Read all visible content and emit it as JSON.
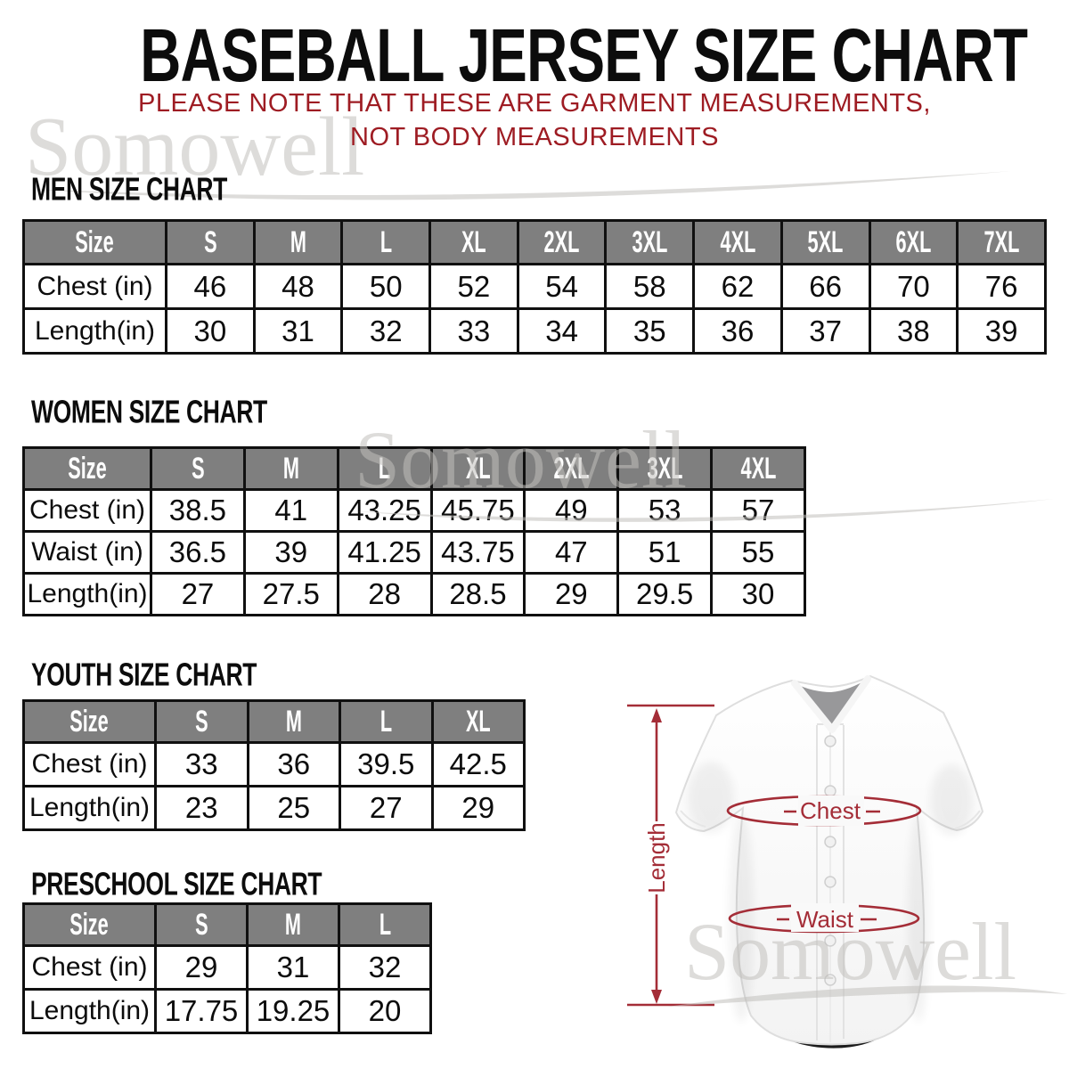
{
  "brand_watermark": "Somowell",
  "header": {
    "title": "BASEBALL JERSEY SIZE CHART",
    "subtitle_line1": "PLEASE NOTE THAT THESE ARE GARMENT MEASUREMENTS,",
    "subtitle_line2": "NOT BODY MEASUREMENTS"
  },
  "colors": {
    "table_header_bg": "#7f7f7f",
    "table_border": "#101010",
    "subtitle_red": "#9e1c23",
    "annotation_red": "#a42d37",
    "watermark_gray": "rgba(193,191,188,0.55)"
  },
  "sections": [
    {
      "id": "men",
      "heading": "MEN SIZE CHART",
      "columns": [
        "Size",
        "S",
        "M",
        "L",
        "XL",
        "2XL",
        "3XL",
        "4XL",
        "5XL",
        "6XL",
        "7XL"
      ],
      "rows": [
        {
          "label": "Chest (in)",
          "values": [
            "46",
            "48",
            "50",
            "52",
            "54",
            "58",
            "62",
            "66",
            "70",
            "76"
          ]
        },
        {
          "label": "Length(in)",
          "values": [
            "30",
            "31",
            "32",
            "33",
            "34",
            "35",
            "36",
            "37",
            "38",
            "39"
          ]
        }
      ]
    },
    {
      "id": "women",
      "heading": "WOMEN SIZE CHART",
      "columns": [
        "Size",
        "S",
        "M",
        "L",
        "XL",
        "2XL",
        "3XL",
        "4XL"
      ],
      "rows": [
        {
          "label": "Chest (in)",
          "values": [
            "38.5",
            "41",
            "43.25",
            "45.75",
            "49",
            "53",
            "57"
          ]
        },
        {
          "label": "Waist (in)",
          "values": [
            "36.5",
            "39",
            "41.25",
            "43.75",
            "47",
            "51",
            "55"
          ]
        },
        {
          "label": "Length(in)",
          "values": [
            "27",
            "27.5",
            "28",
            "28.5",
            "29",
            "29.5",
            "30"
          ]
        }
      ]
    },
    {
      "id": "youth",
      "heading": "YOUTH SIZE CHART",
      "columns": [
        "Size",
        "S",
        "M",
        "L",
        "XL"
      ],
      "rows": [
        {
          "label": "Chest (in)",
          "values": [
            "33",
            "36",
            "39.5",
            "42.5"
          ]
        },
        {
          "label": "Length(in)",
          "values": [
            "23",
            "25",
            "27",
            "29"
          ]
        }
      ]
    },
    {
      "id": "preschool",
      "heading": "PRESCHOOL SIZE CHART",
      "columns": [
        "Size",
        "S",
        "M",
        "L"
      ],
      "rows": [
        {
          "label": "Chest (in)",
          "values": [
            "29",
            "31",
            "32"
          ]
        },
        {
          "label": "Length(in)",
          "values": [
            "17.75",
            "19.25",
            "20"
          ]
        }
      ]
    }
  ],
  "jersey_diagram": {
    "length_label": "Length",
    "chest_label": "Chest",
    "waist_label": "Waist"
  }
}
